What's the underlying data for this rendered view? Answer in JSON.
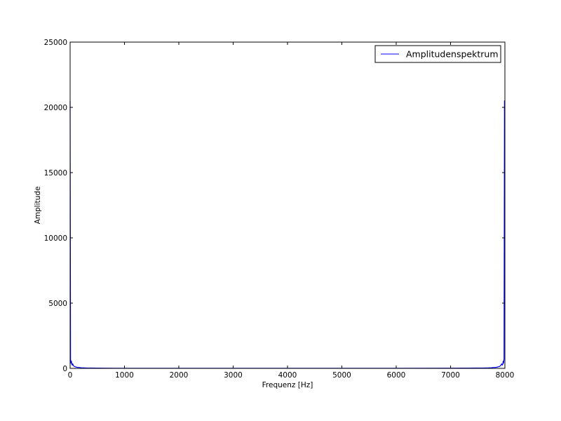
{
  "chart_data": {
    "type": "line",
    "title": "",
    "xlabel": "Frequenz [Hz]",
    "ylabel": "Amplitude",
    "xlim": [
      0,
      8000
    ],
    "ylim": [
      0,
      25000
    ],
    "xticks": [
      0,
      1000,
      2000,
      3000,
      4000,
      5000,
      6000,
      7000,
      8000
    ],
    "xtick_labels": [
      "0",
      "1000",
      "2000",
      "3000",
      "4000",
      "5000",
      "6000",
      "7000",
      "8000"
    ],
    "yticks": [
      0,
      5000,
      10000,
      15000,
      20000,
      25000
    ],
    "ytick_labels": [
      "0",
      "5000",
      "10000",
      "15000",
      "20000",
      "25000"
    ],
    "grid": false,
    "legend_position": "top-right",
    "series": [
      {
        "name": "Amplitudenspektrum",
        "color": "#0000ff",
        "x": [
          0,
          8,
          16,
          24,
          32,
          40,
          48,
          60,
          80,
          100,
          130,
          160,
          200,
          250,
          300,
          400,
          500,
          700,
          1000,
          2000,
          3000,
          4000,
          5000,
          6000,
          7000,
          7300,
          7500,
          7600,
          7700,
          7750,
          7800,
          7840,
          7870,
          7900,
          7920,
          7940,
          7952,
          7960,
          7968,
          7976,
          7984,
          7992,
          8000
        ],
        "y": [
          20500,
          700,
          400,
          550,
          300,
          250,
          350,
          200,
          150,
          110,
          80,
          70,
          50,
          40,
          30,
          25,
          20,
          15,
          10,
          8,
          8,
          8,
          8,
          10,
          15,
          20,
          25,
          30,
          40,
          50,
          70,
          80,
          110,
          150,
          200,
          350,
          250,
          300,
          550,
          400,
          700,
          20500,
          20500
        ]
      }
    ]
  }
}
